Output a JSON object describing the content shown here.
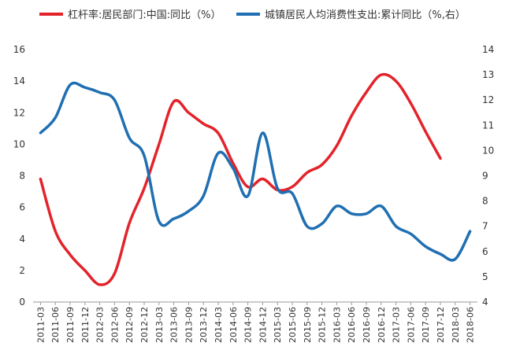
{
  "chart_data": {
    "type": "line",
    "title": "",
    "legend_position": "top",
    "categories": [
      "2011-03",
      "2011-06",
      "2011-09",
      "2011-12",
      "2012-03",
      "2012-06",
      "2012-09",
      "2012-12",
      "2013-03",
      "2013-06",
      "2013-09",
      "2013-12",
      "2014-03",
      "2014-06",
      "2014-09",
      "2014-12",
      "2015-03",
      "2015-06",
      "2015-09",
      "2015-12",
      "2016-03",
      "2016-06",
      "2016-09",
      "2016-12",
      "2017-03",
      "2017-06",
      "2017-09",
      "2017-12",
      "2018-03",
      "2018-06"
    ],
    "left_axis": {
      "min": 0,
      "max": 16,
      "ticks": [
        0,
        2,
        4,
        6,
        8,
        10,
        12,
        14,
        16
      ]
    },
    "right_axis": {
      "min": 4,
      "max": 14,
      "ticks": [
        4,
        5,
        6,
        7,
        8,
        9,
        10,
        11,
        12,
        13,
        14
      ]
    },
    "series": [
      {
        "name": "杠杆率:居民部门:中国:同比（%）",
        "axis": "left",
        "color": "#e3232b",
        "points": [
          {
            "x": "2011-03",
            "y": 7.8
          },
          {
            "x": "2011-06",
            "y": 4.5
          },
          {
            "x": "2011-09",
            "y": 3.0
          },
          {
            "x": "2011-12",
            "y": 2.0
          },
          {
            "x": "2012-03",
            "y": 1.1
          },
          {
            "x": "2012-06",
            "y": 1.8
          },
          {
            "x": "2012-09",
            "y": 5.0
          },
          {
            "x": "2012-12",
            "y": 7.2
          },
          {
            "x": "2013-03",
            "y": 10.0
          },
          {
            "x": "2013-06",
            "y": 12.7
          },
          {
            "x": "2013-09",
            "y": 12.0
          },
          {
            "x": "2013-12",
            "y": 11.3
          },
          {
            "x": "2014-03",
            "y": 10.7
          },
          {
            "x": "2014-06",
            "y": 8.8
          },
          {
            "x": "2014-09",
            "y": 7.3
          },
          {
            "x": "2014-12",
            "y": 7.8
          },
          {
            "x": "2015-03",
            "y": 7.1
          },
          {
            "x": "2015-06",
            "y": 7.3
          },
          {
            "x": "2015-09",
            "y": 8.2
          },
          {
            "x": "2015-12",
            "y": 8.7
          },
          {
            "x": "2016-03",
            "y": 9.9
          },
          {
            "x": "2016-06",
            "y": 11.8
          },
          {
            "x": "2016-09",
            "y": 13.3
          },
          {
            "x": "2016-12",
            "y": 14.4
          },
          {
            "x": "2017-03",
            "y": 14.0
          },
          {
            "x": "2017-06",
            "y": 12.6
          },
          {
            "x": "2017-09",
            "y": 10.8
          },
          {
            "x": "2017-12",
            "y": 9.1
          }
        ]
      },
      {
        "name": "城镇居民人均消费性支出:累计同比（%,右）",
        "axis": "right",
        "color": "#1f6fb2",
        "points": [
          {
            "x": "2011-03",
            "y": 10.7
          },
          {
            "x": "2011-06",
            "y": 11.3
          },
          {
            "x": "2011-09",
            "y": 12.6
          },
          {
            "x": "2011-12",
            "y": 12.5
          },
          {
            "x": "2012-03",
            "y": 12.3
          },
          {
            "x": "2012-06",
            "y": 12.0
          },
          {
            "x": "2012-09",
            "y": 10.5
          },
          {
            "x": "2012-12",
            "y": 9.8
          },
          {
            "x": "2013-03",
            "y": 7.2
          },
          {
            "x": "2013-06",
            "y": 7.3
          },
          {
            "x": "2013-09",
            "y": 7.6
          },
          {
            "x": "2013-12",
            "y": 8.2
          },
          {
            "x": "2014-03",
            "y": 9.9
          },
          {
            "x": "2014-06",
            "y": 9.3
          },
          {
            "x": "2014-09",
            "y": 8.2
          },
          {
            "x": "2014-12",
            "y": 10.7
          },
          {
            "x": "2015-03",
            "y": 8.5
          },
          {
            "x": "2015-06",
            "y": 8.3
          },
          {
            "x": "2015-09",
            "y": 7.0
          },
          {
            "x": "2015-12",
            "y": 7.1
          },
          {
            "x": "2016-03",
            "y": 7.8
          },
          {
            "x": "2016-06",
            "y": 7.5
          },
          {
            "x": "2016-09",
            "y": 7.5
          },
          {
            "x": "2016-12",
            "y": 7.8
          },
          {
            "x": "2017-03",
            "y": 7.0
          },
          {
            "x": "2017-06",
            "y": 6.7
          },
          {
            "x": "2017-09",
            "y": 6.2
          },
          {
            "x": "2017-12",
            "y": 5.9
          },
          {
            "x": "2018-03",
            "y": 5.7
          },
          {
            "x": "2018-06",
            "y": 6.8
          }
        ]
      }
    ]
  }
}
